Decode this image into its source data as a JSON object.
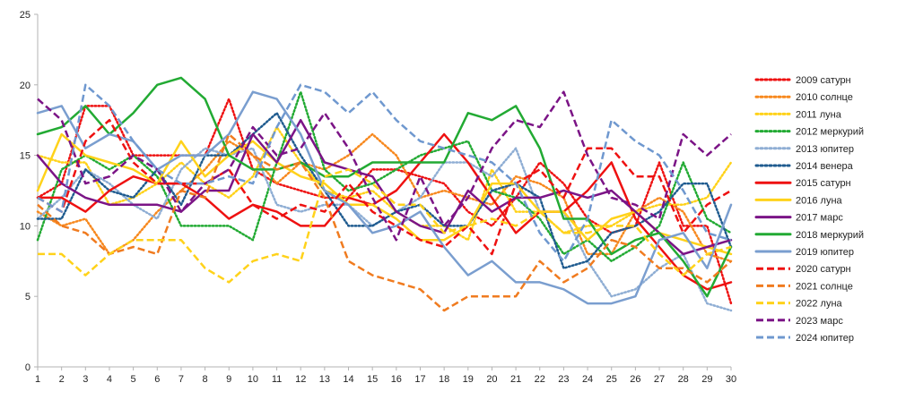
{
  "chart_data": {
    "type": "line",
    "x": [
      1,
      2,
      3,
      4,
      5,
      6,
      7,
      8,
      9,
      10,
      11,
      12,
      13,
      14,
      15,
      16,
      17,
      18,
      19,
      20,
      21,
      22,
      23,
      24,
      25,
      26,
      27,
      28,
      29,
      30
    ],
    "ylim": [
      0,
      25
    ],
    "yticks": [
      0,
      5,
      10,
      15,
      20,
      25
    ],
    "grid": "none",
    "legend_position": "right",
    "series": [
      {
        "name": "2009 сатурн",
        "color": "#ee1111",
        "dash": "dot",
        "values": [
          12,
          13,
          18.5,
          18.5,
          15,
          15,
          15,
          15,
          19,
          14,
          13,
          12.5,
          12,
          12,
          14,
          14,
          13.5,
          13,
          11,
          10,
          12,
          14.5,
          13,
          10.5,
          9.5,
          10,
          14.5,
          10,
          10,
          4.5
        ]
      },
      {
        "name": "2010 солнце",
        "color": "#f7891f",
        "dash": "dot",
        "values": [
          11,
          10,
          10.5,
          8,
          9,
          11,
          12.5,
          14,
          16,
          15,
          13,
          14.5,
          14,
          15,
          16.5,
          15,
          12,
          12.5,
          12,
          11.5,
          13.5,
          13,
          12,
          8,
          8,
          11,
          12,
          11,
          8,
          7.5
        ]
      },
      {
        "name": "2011 луна",
        "color": "#ffd21a",
        "dash": "dot",
        "values": [
          15,
          14.5,
          14.5,
          11.5,
          12,
          13,
          14.5,
          13,
          12,
          13.5,
          17,
          14.5,
          12.5,
          12,
          12.5,
          11,
          10,
          10,
          9,
          14,
          11,
          11,
          9.5,
          10,
          10,
          11,
          11.5,
          11.5,
          12,
          14.5
        ]
      },
      {
        "name": "2012 меркурий",
        "color": "#22aa33",
        "dash": "dot",
        "values": [
          9,
          14,
          15,
          14,
          15,
          13.5,
          10,
          10,
          10,
          9,
          14.5,
          19.5,
          14,
          12.5,
          13,
          14,
          15,
          15.5,
          16,
          12.5,
          12,
          10.5,
          8,
          9,
          7.5,
          8.5,
          10,
          14.5,
          10.5,
          9.5
        ]
      },
      {
        "name": "2013 юпитер",
        "color": "#8faed4",
        "dash": "dot",
        "values": [
          10.5,
          12,
          14,
          13,
          11.5,
          10.5,
          14,
          15.5,
          15,
          15.5,
          11.5,
          11,
          11.5,
          11.5,
          10,
          11,
          12,
          14.5,
          14.5,
          13.5,
          15.5,
          11,
          11,
          7.5,
          5,
          5.5,
          7,
          8,
          4.5,
          4
        ]
      },
      {
        "name": "2014 венера",
        "color": "#1f5b8f",
        "dash": "dot",
        "values": [
          10.5,
          10.5,
          14,
          12.5,
          12,
          14,
          11.5,
          15,
          15,
          16.5,
          18,
          15,
          12.5,
          10,
          10,
          11,
          11.5,
          10,
          10,
          12.5,
          13,
          12,
          7,
          7.5,
          9.5,
          10,
          11,
          13,
          13,
          8.5
        ]
      },
      {
        "name": "2015 сатурн",
        "color": "#ee1111",
        "dash": "solid",
        "values": [
          12,
          12,
          11,
          12.5,
          13.5,
          13,
          13,
          12,
          10.5,
          11.5,
          11,
          10,
          10,
          12,
          11.5,
          12.5,
          14.5,
          16.5,
          14.5,
          12,
          9.5,
          11,
          11,
          12.5,
          14.5,
          10.5,
          8.5,
          6.5,
          5.5,
          6
        ]
      },
      {
        "name": "2016 луна",
        "color": "#ffd21a",
        "dash": "solid",
        "values": [
          12.5,
          16.5,
          15,
          14.5,
          14,
          13,
          16,
          13.5,
          15,
          16,
          14.5,
          13.5,
          13,
          11.5,
          11.5,
          10.5,
          9,
          9,
          10,
          13,
          13,
          11,
          11,
          9,
          10.5,
          11,
          9.5,
          9,
          8.5,
          8
        ]
      },
      {
        "name": "2017 марс",
        "color": "#7b1486",
        "dash": "solid",
        "values": [
          15,
          13,
          12,
          11.5,
          11.5,
          11.5,
          11,
          12.5,
          12.5,
          16.5,
          14.5,
          17.5,
          14.5,
          14,
          13.5,
          11,
          10,
          9.5,
          12.5,
          11,
          12,
          12,
          12.5,
          12,
          12.5,
          11,
          9.5,
          8,
          8.5,
          9
        ]
      },
      {
        "name": "2018 меркурий",
        "color": "#22aa33",
        "dash": "solid",
        "values": [
          16.5,
          17,
          18.5,
          16.5,
          18,
          20,
          20.5,
          19,
          15,
          14,
          14,
          14.5,
          13.5,
          13.5,
          14.5,
          14.5,
          14.5,
          14.5,
          18,
          17.5,
          18.5,
          15.5,
          10.5,
          10.5,
          8,
          9,
          9.5,
          7.5,
          5,
          8.5
        ]
      },
      {
        "name": "2019 юпитер",
        "color": "#7a9ecf",
        "dash": "solid",
        "values": [
          18,
          18.5,
          15.5,
          16.5,
          16,
          14,
          15,
          15,
          16.5,
          19.5,
          19,
          16.5,
          12.5,
          11.5,
          9.5,
          10,
          11,
          8.5,
          6.5,
          7.5,
          6,
          6,
          5.5,
          4.5,
          4.5,
          5,
          9,
          9.5,
          7,
          11.5
        ]
      },
      {
        "name": "2020 сатурн",
        "color": "#ee1111",
        "dash": "dash",
        "values": [
          12,
          11,
          16,
          17.5,
          14.5,
          13,
          13,
          13,
          14,
          11.5,
          10.5,
          11.5,
          11,
          13,
          11,
          10,
          9,
          8.5,
          10,
          8,
          13,
          14,
          12,
          15.5,
          15.5,
          13.5,
          13.5,
          9.5,
          11.5,
          12.5
        ]
      },
      {
        "name": "2021 солнце",
        "color": "#f07b1f",
        "dash": "dash",
        "values": [
          11.5,
          10,
          9.5,
          8,
          8.5,
          8,
          12.5,
          12,
          16.5,
          15,
          14,
          14.5,
          12,
          7.5,
          6.5,
          6,
          5.5,
          4,
          5,
          5,
          5,
          7.5,
          6,
          7,
          9,
          8.5,
          7,
          7,
          6,
          7.5
        ]
      },
      {
        "name": "2022 луна",
        "color": "#ffd21a",
        "dash": "dash",
        "values": [
          8,
          8,
          6.5,
          8,
          9,
          9,
          9,
          7,
          6,
          7.5,
          8,
          7.5,
          13.5,
          14,
          13,
          11.5,
          11.5,
          9.5,
          10,
          10.5,
          10,
          11,
          9.5,
          9.5,
          10,
          10,
          8,
          6.5,
          8,
          8.5
        ]
      },
      {
        "name": "2023 марс",
        "color": "#7b1486",
        "dash": "dash",
        "values": [
          19,
          17.5,
          13,
          13.5,
          15,
          14,
          11,
          13,
          14,
          17,
          15,
          15.5,
          18,
          15.5,
          12,
          9,
          13.5,
          10,
          12,
          15.5,
          17.5,
          17,
          19.5,
          15,
          12,
          11.5,
          10.5,
          16.5,
          15,
          16.5
        ]
      },
      {
        "name": "2024 юпитер",
        "color": "#6f98cf",
        "dash": "dash",
        "values": [
          12,
          11,
          20,
          18.5,
          16,
          14,
          13,
          13,
          13.5,
          13,
          17,
          20,
          19.5,
          18,
          19.5,
          17.5,
          16,
          15.5,
          15,
          14.5,
          13,
          9.5,
          7.5,
          10.5,
          17.5,
          16,
          15,
          12.5,
          9.5,
          9
        ]
      }
    ]
  }
}
